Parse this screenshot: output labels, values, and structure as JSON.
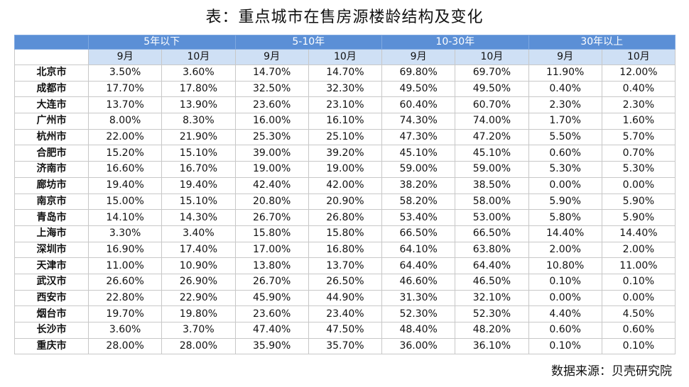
{
  "title": "表：重点城市在售房源楼龄结构及变化",
  "groups": [
    "5年以下",
    "5-10年",
    "10-30年",
    "30年以上"
  ],
  "months": [
    "9月",
    "10月"
  ],
  "rows": [
    {
      "city": "北京市",
      "v": [
        "3.50%",
        "3.60%",
        "14.70%",
        "14.70%",
        "69.80%",
        "69.70%",
        "11.90%",
        "12.00%"
      ]
    },
    {
      "city": "成都市",
      "v": [
        "17.70%",
        "17.80%",
        "32.50%",
        "32.30%",
        "49.50%",
        "49.50%",
        "0.40%",
        "0.40%"
      ]
    },
    {
      "city": "大连市",
      "v": [
        "13.70%",
        "13.90%",
        "23.60%",
        "23.10%",
        "60.40%",
        "60.70%",
        "2.30%",
        "2.30%"
      ]
    },
    {
      "city": "广州市",
      "v": [
        "8.00%",
        "8.30%",
        "16.00%",
        "16.10%",
        "74.30%",
        "74.00%",
        "1.70%",
        "1.60%"
      ]
    },
    {
      "city": "杭州市",
      "v": [
        "22.00%",
        "21.90%",
        "25.30%",
        "25.10%",
        "47.30%",
        "47.20%",
        "5.50%",
        "5.70%"
      ]
    },
    {
      "city": "合肥市",
      "v": [
        "15.20%",
        "15.10%",
        "39.00%",
        "39.20%",
        "45.10%",
        "45.10%",
        "0.60%",
        "0.70%"
      ]
    },
    {
      "city": "济南市",
      "v": [
        "16.60%",
        "16.70%",
        "19.00%",
        "19.00%",
        "59.00%",
        "59.00%",
        "5.30%",
        "5.30%"
      ]
    },
    {
      "city": "廊坊市",
      "v": [
        "19.40%",
        "19.40%",
        "42.40%",
        "42.00%",
        "38.20%",
        "38.50%",
        "0.00%",
        "0.00%"
      ]
    },
    {
      "city": "南京市",
      "v": [
        "15.00%",
        "15.10%",
        "20.80%",
        "20.90%",
        "58.20%",
        "58.00%",
        "5.90%",
        "5.90%"
      ]
    },
    {
      "city": "青岛市",
      "v": [
        "14.10%",
        "14.30%",
        "26.70%",
        "26.80%",
        "53.40%",
        "53.00%",
        "5.80%",
        "5.90%"
      ]
    },
    {
      "city": "上海市",
      "v": [
        "3.30%",
        "3.40%",
        "15.80%",
        "15.80%",
        "66.50%",
        "66.50%",
        "14.40%",
        "14.40%"
      ]
    },
    {
      "city": "深圳市",
      "v": [
        "16.90%",
        "17.40%",
        "17.00%",
        "16.80%",
        "64.10%",
        "63.80%",
        "2.00%",
        "2.00%"
      ]
    },
    {
      "city": "天津市",
      "v": [
        "11.00%",
        "10.90%",
        "13.80%",
        "13.70%",
        "64.40%",
        "64.40%",
        "10.80%",
        "11.00%"
      ]
    },
    {
      "city": "武汉市",
      "v": [
        "26.60%",
        "26.90%",
        "26.70%",
        "26.50%",
        "46.60%",
        "46.50%",
        "0.10%",
        "0.10%"
      ]
    },
    {
      "city": "西安市",
      "v": [
        "22.80%",
        "22.90%",
        "45.90%",
        "44.90%",
        "31.30%",
        "32.10%",
        "0.00%",
        "0.00%"
      ]
    },
    {
      "city": "烟台市",
      "v": [
        "19.70%",
        "19.80%",
        "23.60%",
        "23.40%",
        "52.30%",
        "52.30%",
        "4.40%",
        "4.50%"
      ]
    },
    {
      "city": "长沙市",
      "v": [
        "3.60%",
        "3.70%",
        "47.40%",
        "47.50%",
        "48.40%",
        "48.20%",
        "0.60%",
        "0.60%"
      ]
    },
    {
      "city": "重庆市",
      "v": [
        "28.00%",
        "28.00%",
        "35.90%",
        "35.70%",
        "36.00%",
        "36.10%",
        "0.10%",
        "0.10%"
      ]
    }
  ],
  "source": "数据来源：贝壳研究院",
  "colors": {
    "header_blue": "#5b8fd6",
    "subheader_blue": "#cfe0f5"
  }
}
